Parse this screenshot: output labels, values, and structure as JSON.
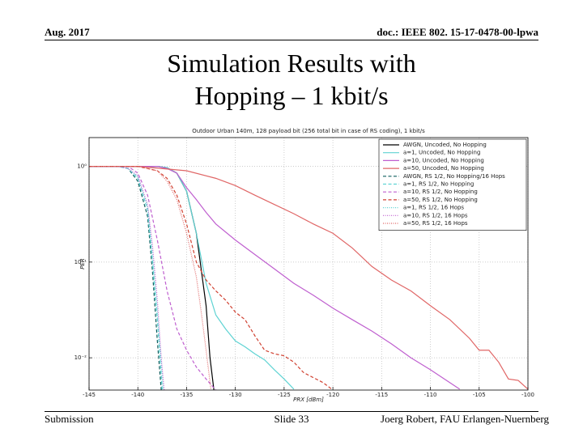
{
  "slide": {
    "date": "Aug. 2017",
    "doc": "doc.: IEEE 802. 15-17-0478-00-lpwa",
    "title": "Simulation Results with Hopping – 1 kbit/s",
    "footer_left": "Submission",
    "footer_center": "Slide 33",
    "footer_right": "Joerg Robert, FAU Erlangen-Nuernberg"
  },
  "chart_data": {
    "type": "line",
    "title": "Outdoor Urban 140m, 128 payload bit (256 total bit in case of RS coding), 1 kbit/s",
    "xlabel": "PRX [dBm]",
    "ylabel": "PER",
    "ylog": true,
    "grid": true,
    "legend": "upper right",
    "xlim": [
      -145,
      -100
    ],
    "xticks": [
      -145,
      -140,
      -135,
      -130,
      -125,
      -120,
      -115,
      -110,
      -105,
      -100
    ],
    "ylim": [
      0.0046,
      2
    ],
    "yticks": [
      {
        "value": 0.01,
        "label": "10⁻²"
      },
      {
        "value": 0.1,
        "label": "10⁻¹"
      },
      {
        "value": 1,
        "label": "10⁰"
      }
    ],
    "series": [
      {
        "name": "AWGN, Uncoded, No Hopping",
        "color": "#000000",
        "dash": "solid",
        "x": [
          -145,
          -138,
          -137,
          -136,
          -135,
          -134,
          -133,
          -132.6,
          -132.2
        ],
        "values": [
          1,
          1,
          0.97,
          0.85,
          0.55,
          0.2,
          0.035,
          0.01,
          0.0046
        ]
      },
      {
        "name": "a=1, Uncoded, No Hopping",
        "color": "#5fd3d3",
        "dash": "solid",
        "x": [
          -145,
          -138,
          -137,
          -136,
          -135,
          -134,
          -133,
          -132,
          -131,
          -130,
          -129,
          -128,
          -127,
          -126,
          -125,
          -124
        ],
        "values": [
          1,
          1,
          0.97,
          0.85,
          0.55,
          0.2,
          0.06,
          0.028,
          0.02,
          0.015,
          0.013,
          0.011,
          0.0095,
          0.0075,
          0.006,
          0.0047
        ]
      },
      {
        "name": "a=10, Uncoded, No Hopping",
        "color": "#bf5fcf",
        "dash": "solid",
        "x": [
          -145,
          -138,
          -137,
          -136,
          -135,
          -134,
          -133,
          -132,
          -130,
          -128,
          -126,
          -124,
          -122,
          -120,
          -118,
          -116,
          -114,
          -112,
          -110,
          -108,
          -107
        ],
        "values": [
          1,
          1,
          0.95,
          0.85,
          0.6,
          0.45,
          0.33,
          0.25,
          0.17,
          0.12,
          0.085,
          0.06,
          0.045,
          0.033,
          0.025,
          0.019,
          0.014,
          0.01,
          0.0075,
          0.0055,
          0.0047
        ]
      },
      {
        "name": "a=50, Uncoded, No Hopping",
        "color": "#e06666",
        "dash": "solid",
        "x": [
          -145,
          -140,
          -135,
          -132,
          -130,
          -128,
          -126,
          -124,
          -122,
          -120,
          -118,
          -116,
          -114,
          -112,
          -110,
          -108,
          -106,
          -105,
          -104,
          -103,
          -102,
          -101,
          -100
        ],
        "values": [
          1,
          1,
          0.9,
          0.75,
          0.63,
          0.5,
          0.4,
          0.32,
          0.25,
          0.2,
          0.14,
          0.09,
          0.065,
          0.05,
          0.035,
          0.025,
          0.016,
          0.012,
          0.012,
          0.009,
          0.006,
          0.0058,
          0.0047
        ]
      },
      {
        "name": "AWGN, RS 1/2, No Hopping/16 Hops",
        "color": "#0f5f5f",
        "dash": "dashed",
        "x": [
          -145,
          -142,
          -141,
          -140,
          -139,
          -138.5,
          -138,
          -137.6
        ],
        "values": [
          1,
          1,
          0.95,
          0.7,
          0.3,
          0.08,
          0.015,
          0.0046
        ]
      },
      {
        "name": "a=1, RS 1/2, No Hopping",
        "color": "#5fd3d3",
        "dash": "dashed",
        "x": [
          -145,
          -142,
          -141,
          -140,
          -139,
          -138.5,
          -138,
          -137.5
        ],
        "values": [
          1,
          1,
          0.95,
          0.75,
          0.35,
          0.1,
          0.025,
          0.0046
        ]
      },
      {
        "name": "a=10, RS 1/2, No Hopping",
        "color": "#bf5fcf",
        "dash": "dashed",
        "x": [
          -145,
          -141,
          -140,
          -139,
          -138,
          -137,
          -136,
          -135,
          -134,
          -133,
          -132
        ],
        "values": [
          1,
          1,
          0.85,
          0.5,
          0.17,
          0.05,
          0.02,
          0.012,
          0.008,
          0.006,
          0.0046
        ]
      },
      {
        "name": "a=50, RS 1/2, No Hopping",
        "color": "#d04030",
        "dash": "dashed",
        "x": [
          -145,
          -140,
          -138,
          -137,
          -136,
          -135,
          -134,
          -133,
          -132,
          -131,
          -130,
          -129,
          -128,
          -127,
          -126,
          -125,
          -124,
          -123,
          -122,
          -121,
          -120
        ],
        "values": [
          1,
          1,
          0.9,
          0.75,
          0.5,
          0.25,
          0.1,
          0.065,
          0.05,
          0.04,
          0.03,
          0.025,
          0.017,
          0.012,
          0.011,
          0.0105,
          0.009,
          0.007,
          0.0062,
          0.0055,
          0.0046
        ]
      },
      {
        "name": "a=1, RS 1/2, 16 Hops",
        "color": "#5fd3d3",
        "dash": "dotted",
        "x": [
          -145,
          -142,
          -141,
          -140,
          -139,
          -138.5,
          -138,
          -137.4
        ],
        "values": [
          1,
          1,
          0.95,
          0.78,
          0.38,
          0.12,
          0.03,
          0.0046
        ]
      },
      {
        "name": "a=10, RS 1/2, 16 Hops",
        "color": "#bf5fcf",
        "dash": "dotted",
        "x": [
          -145,
          -142,
          -141,
          -140,
          -139,
          -138.5,
          -138,
          -137.6,
          -137.3
        ],
        "values": [
          1,
          1,
          0.95,
          0.8,
          0.4,
          0.15,
          0.04,
          0.01,
          0.0046
        ]
      },
      {
        "name": "a=50, RS 1/2, 16 Hops",
        "color": "#e06666",
        "dash": "dotted",
        "x": [
          -145,
          -140,
          -138,
          -137,
          -136,
          -135,
          -134,
          -133.5,
          -133,
          -132.5
        ],
        "values": [
          1,
          1,
          0.9,
          0.7,
          0.45,
          0.2,
          0.07,
          0.03,
          0.012,
          0.0046
        ]
      }
    ]
  }
}
